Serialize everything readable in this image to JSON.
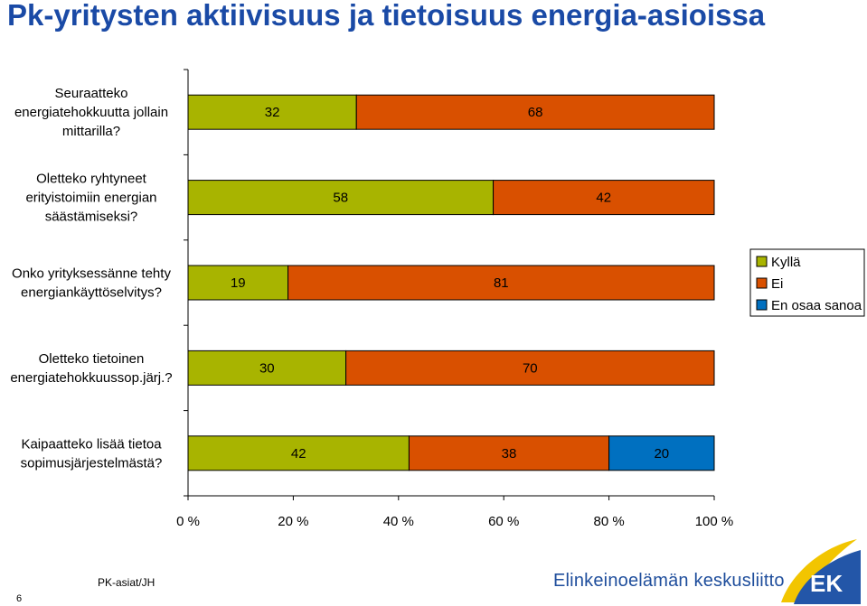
{
  "slide": {
    "title": "Pk-yritysten aktiivisuus ja tietoisuus energia-asioissa",
    "page_number": "6",
    "footer_note": "PK-asiat/JH",
    "org_name": "Elinkeinoelämän keskusliitto",
    "logo_text": "EK"
  },
  "colors": {
    "Kyllä": "#a8b400",
    "Ei": "#d95000",
    "En osaa sanoa": "#0070c0"
  },
  "chart_data": {
    "type": "bar",
    "orientation": "horizontal",
    "stacked": true,
    "categories": [
      "Seuraatteko energiatehokkuutta jollain mittarilla?",
      "Oletteko ryhtyneet erityistoimiin energian säästämiseksi?",
      "Onko yrityksessänne tehty energiankäyttöselvitys?",
      "Oletteko tietoinen energiatehokkuussop.järj.?",
      "Kaipaatteko lisää tietoa sopimusjärjestelmästä?"
    ],
    "category_lines": [
      [
        "Seuraatteko",
        "energiatehokkuutta jollain",
        "mittarilla?"
      ],
      [
        "Oletteko ryhtyneet",
        "erityistoimiin energian",
        "säästämiseksi?"
      ],
      [
        "Onko yrityksessänne tehty",
        "energiankäyttöselvitys?"
      ],
      [
        "Oletteko tietoinen",
        "energiatehokkuussop.järj.?"
      ],
      [
        "Kaipaatteko lisää tietoa",
        "sopimusjärjestelmästä?"
      ]
    ],
    "series": [
      {
        "name": "Kyllä",
        "values": [
          32,
          58,
          19,
          30,
          42
        ]
      },
      {
        "name": "Ei",
        "values": [
          68,
          42,
          81,
          70,
          38
        ]
      },
      {
        "name": "En osaa sanoa",
        "values": [
          0,
          0,
          0,
          0,
          20
        ]
      }
    ],
    "xlim": [
      0,
      100
    ],
    "xticks": [
      0,
      20,
      40,
      60,
      80,
      100
    ],
    "xtick_labels": [
      "0 %",
      "20 %",
      "40 %",
      "60 %",
      "80 %",
      "100 %"
    ],
    "legend": {
      "position": "right",
      "entries": [
        "Kyllä",
        "Ei",
        "En osaa sanoa"
      ]
    },
    "grid": false
  }
}
